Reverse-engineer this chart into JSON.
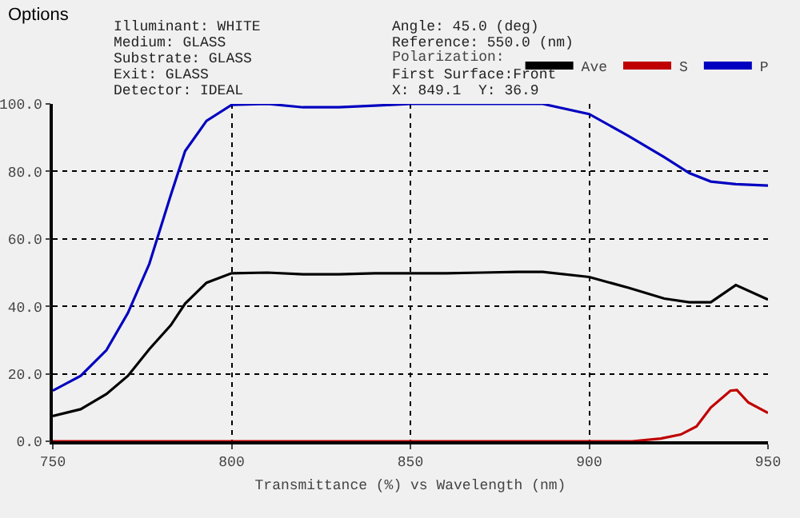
{
  "chart_data": {
    "type": "line",
    "title": "Options",
    "xlabel": "Transmittance (%) vs Wavelength (nm)",
    "legend_title": "Polarization:",
    "annotations": [
      "Illuminant: WHITE",
      "Medium: GLASS",
      "Substrate: GLASS",
      "Exit: GLASS",
      "Detector: IDEAL",
      "Angle: 45.0 (deg)",
      "Reference: 550.0 (nm)",
      "First Surface:Front",
      "X: 849.1  Y: 36.9"
    ],
    "x": [
      750,
      757.8,
      765,
      771,
      777,
      783,
      787,
      793,
      800,
      810,
      820,
      830,
      840,
      850,
      860,
      870,
      880,
      887,
      900,
      911,
      921,
      928,
      934,
      941,
      950
    ],
    "series": [
      {
        "name": "Ave",
        "color": "#000000",
        "values": [
          7.5,
          9.5,
          14,
          19.4,
          27.3,
          34.4,
          40.8,
          47,
          49.8,
          50,
          49.5,
          49.5,
          49.8,
          49.8,
          49.8,
          50,
          50.2,
          50.2,
          48.7,
          45.5,
          42.3,
          41.2,
          41.2,
          46.3,
          42
        ]
      },
      {
        "name": "S",
        "color": "#c00000",
        "x": [
          750,
          800,
          850,
          900,
          912,
          920,
          925.6,
          930,
          934,
          939.5,
          941.3,
          944.5,
          950
        ],
        "values": [
          0,
          0,
          0,
          0,
          0,
          0.8,
          2,
          4.4,
          10,
          15,
          15.2,
          11.5,
          8.4
        ]
      },
      {
        "name": "P",
        "color": "#0000c0",
        "values": [
          15,
          19.4,
          27,
          38,
          52.6,
          73,
          86,
          95,
          99.7,
          100,
          99,
          99,
          99.5,
          100,
          100,
          100,
          100,
          100,
          97,
          90.5,
          84.2,
          79.5,
          77,
          76.2,
          75.8
        ]
      }
    ],
    "xlim": [
      750,
      950
    ],
    "xticks": [
      750,
      800,
      850,
      900,
      950
    ],
    "ylim": [
      0,
      100
    ],
    "yticks": [
      {
        "value": 0,
        "label": "0.0"
      },
      {
        "value": 20,
        "label": "20.0"
      },
      {
        "value": 40,
        "label": "40.0"
      },
      {
        "value": 60,
        "label": "60.0"
      },
      {
        "value": 80,
        "label": "80.0"
      },
      {
        "value": 100,
        "label": "100.0"
      }
    ],
    "grid": true,
    "legend": "top",
    "marker": "none",
    "line_style": "solid"
  }
}
